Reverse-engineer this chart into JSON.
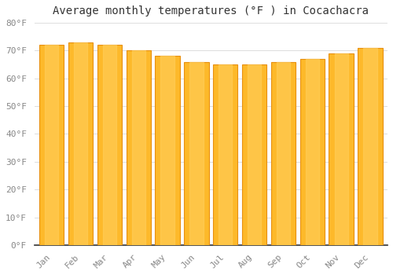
{
  "title": "Average monthly temperatures (°F ) in Cocachacra",
  "months": [
    "Jan",
    "Feb",
    "Mar",
    "Apr",
    "May",
    "Jun",
    "Jul",
    "Aug",
    "Sep",
    "Oct",
    "Nov",
    "Dec"
  ],
  "values": [
    72,
    73,
    72,
    70,
    68,
    66,
    65,
    65,
    66,
    67,
    69,
    71
  ],
  "bar_color_main": "#FDB92A",
  "bar_color_edge": "#E89010",
  "background_color": "#FFFFFF",
  "grid_color": "#DDDDDD",
  "ylim": [
    0,
    80
  ],
  "yticks": [
    0,
    10,
    20,
    30,
    40,
    50,
    60,
    70,
    80
  ],
  "ytick_labels": [
    "0°F",
    "10°F",
    "20°F",
    "30°F",
    "40°F",
    "50°F",
    "60°F",
    "70°F",
    "80°F"
  ],
  "title_fontsize": 10,
  "tick_fontsize": 8,
  "bar_width": 0.85
}
